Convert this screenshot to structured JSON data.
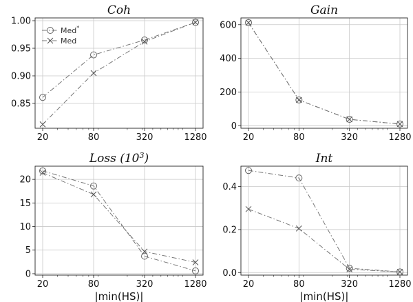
{
  "chart_data": [
    {
      "type": "line",
      "title": "Coh",
      "xlabel": "",
      "x": [
        20,
        80,
        320,
        1280
      ],
      "xticklabels": [
        "20",
        "80",
        "320",
        "1280"
      ],
      "xscale": "log",
      "ylim": [
        0.805,
        1.005
      ],
      "yticks": [
        0.85,
        0.9,
        0.95,
        1.0
      ],
      "yticklabels": [
        "0.85",
        "0.90",
        "0.95",
        "1.00"
      ],
      "grid": true,
      "legend": "top-left",
      "series": [
        {
          "name": "Med*",
          "marker": "circle",
          "values": [
            0.861,
            0.938,
            0.965,
            0.997
          ]
        },
        {
          "name": "Med",
          "marker": "x",
          "values": [
            0.812,
            0.905,
            0.962,
            0.997
          ]
        }
      ]
    },
    {
      "type": "line",
      "title": "Gain",
      "xlabel": "",
      "x": [
        20,
        80,
        320,
        1280
      ],
      "xticklabels": [
        "20",
        "80",
        "320",
        "1280"
      ],
      "xscale": "log",
      "ylim": [
        -15,
        640
      ],
      "yticks": [
        0,
        200,
        400,
        600
      ],
      "yticklabels": [
        "0",
        "200",
        "400",
        "600"
      ],
      "grid": true,
      "series": [
        {
          "marker": "circle",
          "values": [
            612,
            153,
            38,
            10
          ]
        },
        {
          "marker": "x",
          "values": [
            612,
            153,
            38,
            10
          ]
        }
      ]
    },
    {
      "type": "line",
      "title": "Loss (10",
      "title_sup": "3",
      "title_end": ")",
      "xlabel": "|min(HS)|",
      "x": [
        20,
        80,
        320,
        1280
      ],
      "xticklabels": [
        "20",
        "80",
        "320",
        "1280"
      ],
      "xscale": "log",
      "ylim": [
        -0.3,
        22.8
      ],
      "yticks": [
        0,
        5,
        10,
        15,
        20
      ],
      "yticklabels": [
        "0",
        "5",
        "10",
        "15",
        "20"
      ],
      "grid": true,
      "series": [
        {
          "marker": "circle",
          "values": [
            21.8,
            18.6,
            3.7,
            0.6
          ]
        },
        {
          "marker": "x",
          "values": [
            21.4,
            16.8,
            4.7,
            2.4
          ]
        }
      ]
    },
    {
      "type": "line",
      "title": "Int",
      "xlabel": "|min(HS)|",
      "x": [
        20,
        80,
        320,
        1280
      ],
      "xticklabels": [
        "20",
        "80",
        "320",
        "1280"
      ],
      "xscale": "log",
      "ylim": [
        -0.012,
        0.495
      ],
      "yticks": [
        0.0,
        0.2,
        0.4
      ],
      "yticklabels": [
        "0.0",
        "0.2",
        "0.4"
      ],
      "grid": true,
      "series": [
        {
          "marker": "circle",
          "values": [
            0.475,
            0.44,
            0.02,
            0.003
          ]
        },
        {
          "marker": "x",
          "values": [
            0.295,
            0.205,
            0.015,
            0.003
          ]
        }
      ]
    }
  ]
}
